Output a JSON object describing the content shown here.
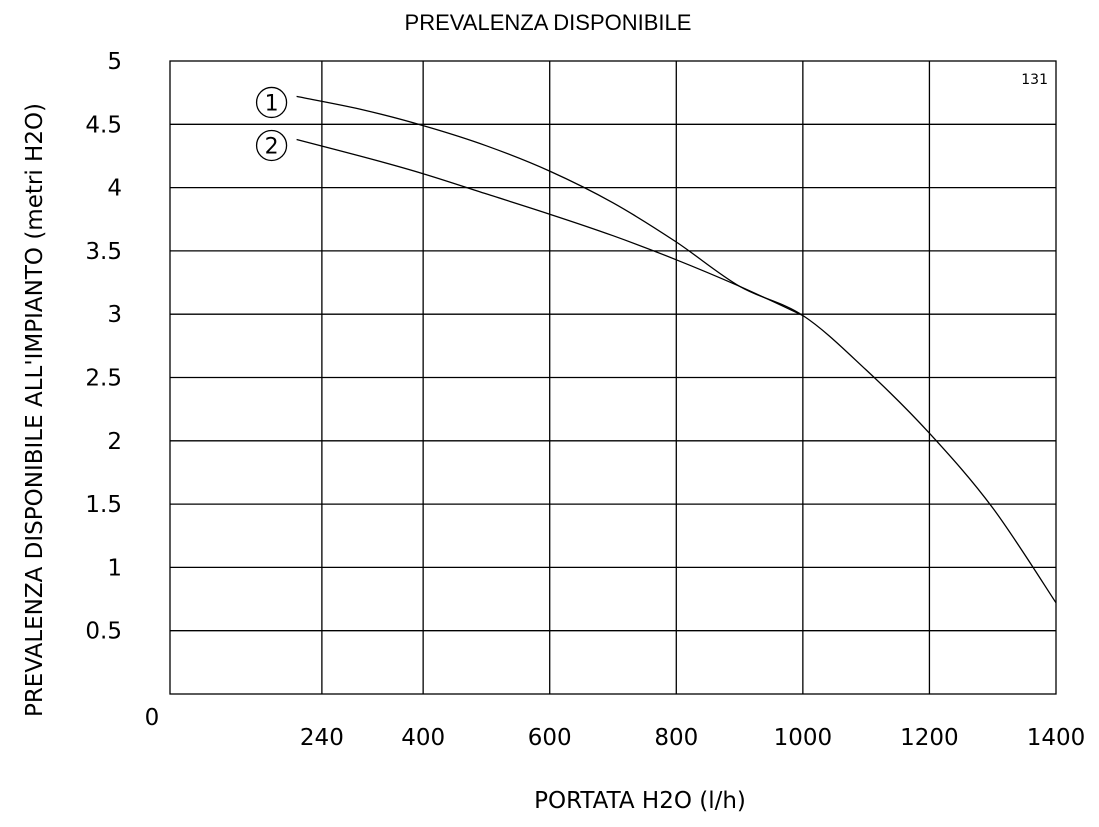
{
  "chart_data": {
    "type": "line",
    "title": "PREVALENZA DISPONIBILE",
    "xlabel": "PORTATA H2O (l/h)",
    "ylabel": "PREVALENZA DISPONIBILE ALL'IMPIANTO (metri H2O)",
    "code": "131",
    "origin_label": "0",
    "xlim": [
      0,
      1400
    ],
    "ylim": [
      0,
      5
    ],
    "x_ticks": [
      240,
      400,
      600,
      800,
      1000,
      1200,
      1400
    ],
    "x_tick_labels": [
      "240",
      "400",
      "600",
      "800",
      "1000",
      "1200",
      "1400"
    ],
    "y_ticks": [
      0.5,
      1,
      1.5,
      2,
      2.5,
      3,
      3.5,
      4,
      4.5,
      5
    ],
    "y_tick_labels": [
      "0.5",
      "1",
      "1.5",
      "2",
      "2.5",
      "3",
      "3.5",
      "4",
      "4.5",
      "5"
    ],
    "grid": true,
    "series": [
      {
        "name": "1",
        "x": [
          200,
          300,
          400,
          500,
          600,
          700,
          800,
          900,
          1000,
          1100,
          1200,
          1300,
          1400
        ],
        "y": [
          4.72,
          4.62,
          4.49,
          4.33,
          4.13,
          3.88,
          3.57,
          3.22,
          2.99,
          2.56,
          2.06,
          1.47,
          0.72
        ]
      },
      {
        "name": "2",
        "x": [
          200,
          300,
          400,
          500,
          600,
          700,
          800,
          900,
          1000
        ],
        "y": [
          4.38,
          4.25,
          4.11,
          3.95,
          3.79,
          3.62,
          3.43,
          3.22,
          2.99
        ]
      }
    ]
  }
}
